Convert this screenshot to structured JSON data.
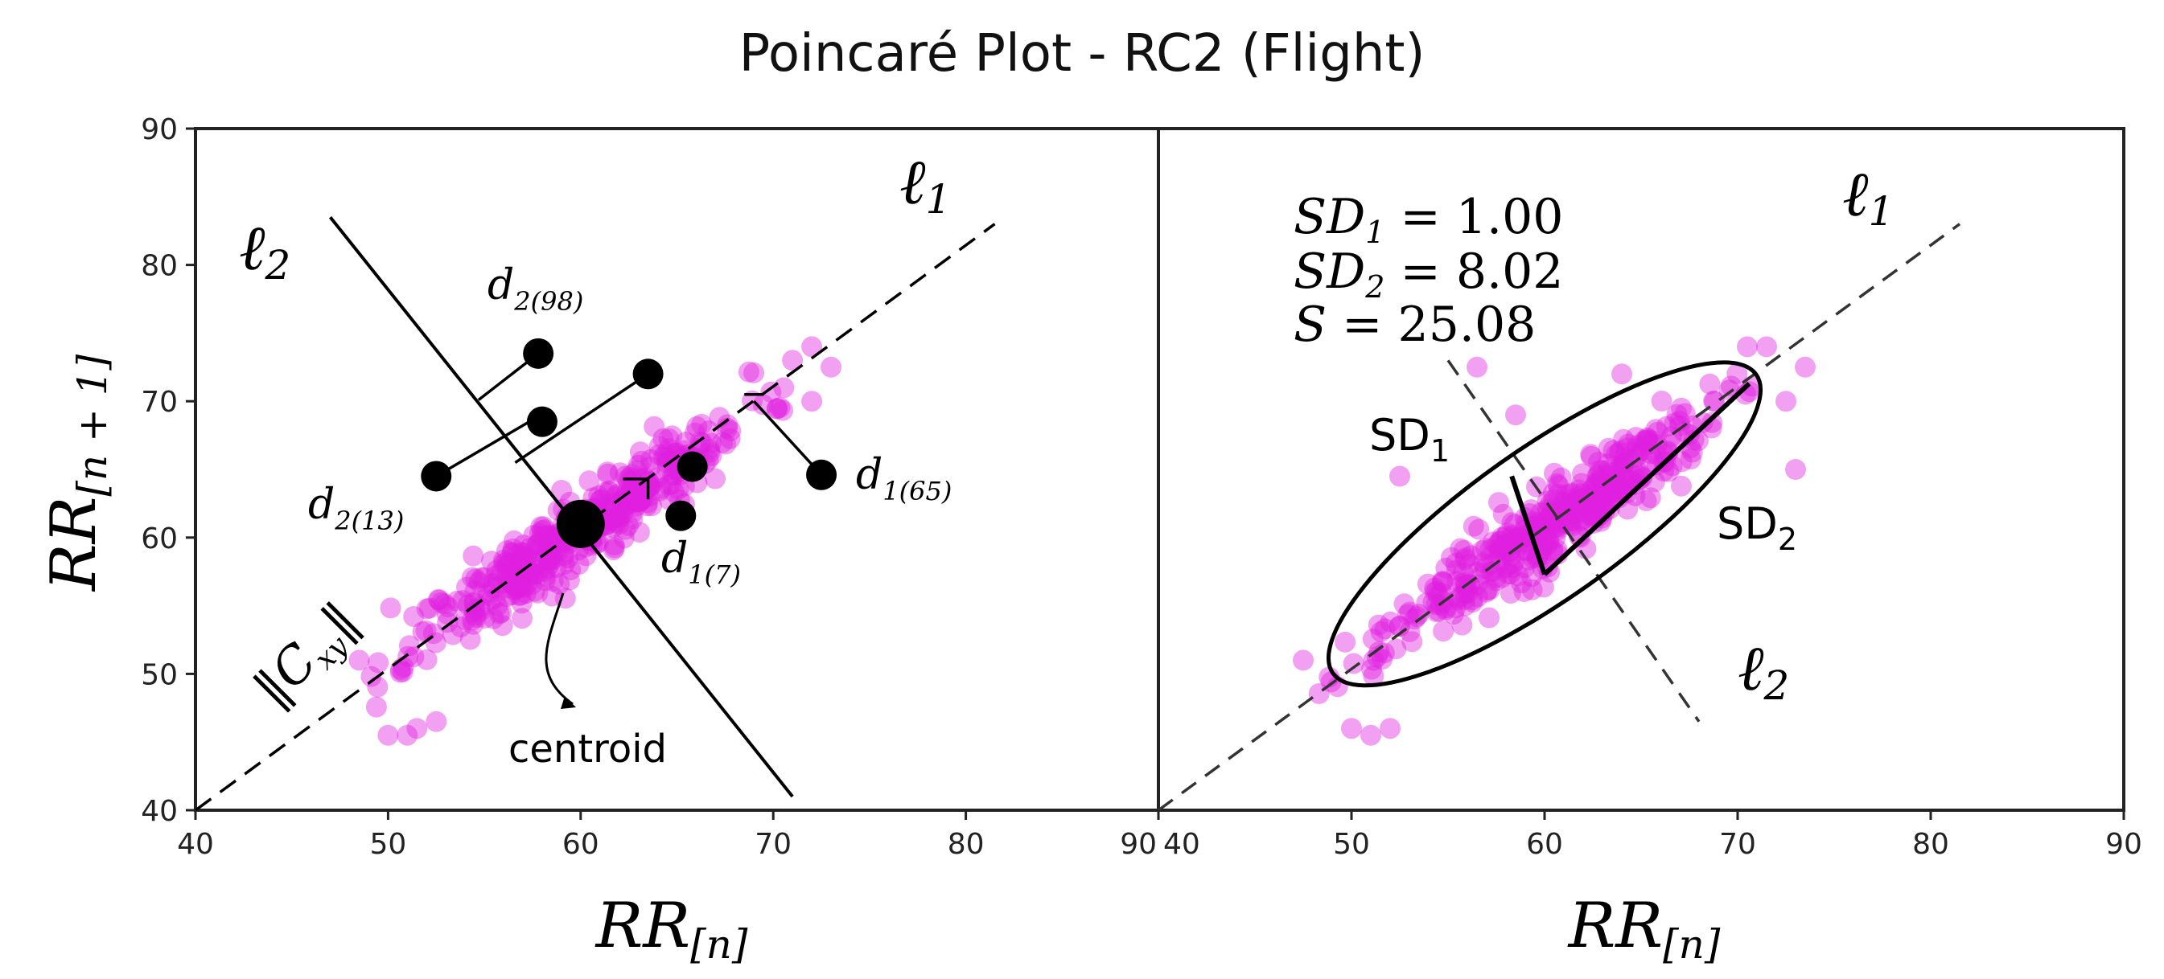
{
  "figure": {
    "title": "Poincaré Plot - RC2 (Flight)"
  },
  "colors": {
    "points": "#e020e0",
    "line": "#000000",
    "axis": "#222222"
  },
  "chart_data": [
    {
      "type": "scatter",
      "panel": "left",
      "title": "Poincaré Plot - RC2 (Flight)",
      "xlabel": "RR[n]",
      "ylabel": "RR[n + 1]",
      "xlim": [
        40,
        90
      ],
      "ylim": [
        40,
        90
      ],
      "x_ticks": [
        40,
        50,
        60,
        70,
        80,
        90
      ],
      "y_ticks": [
        40,
        50,
        60,
        70,
        80,
        90
      ],
      "x_tick_labels": [
        "40",
        "50",
        "60",
        "70",
        "80",
        "90"
      ],
      "y_tick_labels": [
        "40",
        "50",
        "60",
        "70",
        "80",
        "90"
      ],
      "seed": 11,
      "cloud": {
        "count": 420,
        "center": [
          60,
          60
        ],
        "sd_major": 6.2,
        "sd_minor": 1.0,
        "x_range": [
          48,
          71
        ]
      },
      "outliers": [
        [
          50,
          45.5
        ],
        [
          51,
          45.5
        ],
        [
          51.5,
          46
        ],
        [
          52.5,
          46.5
        ],
        [
          65,
          65
        ],
        [
          66,
          65
        ],
        [
          71,
          73
        ],
        [
          72,
          74
        ],
        [
          73,
          72.5
        ],
        [
          72,
          70
        ],
        [
          48.5,
          51
        ]
      ],
      "identity_line": {
        "x": [
          40,
          81.5
        ],
        "y": [
          40,
          83
        ]
      },
      "perpendicular_line": {
        "x": [
          47,
          71
        ],
        "y": [
          83.5,
          41
        ]
      },
      "centroid": {
        "x": 60,
        "y": 61
      },
      "highlighted_points": [
        {
          "name": "d2-98",
          "x": 57.8,
          "y": 73.5
        },
        {
          "name": "d2-13-upper",
          "x": 58,
          "y": 68.5
        },
        {
          "name": "d2-13",
          "x": 52.5,
          "y": 64.5
        },
        {
          "name": "upper-right",
          "x": 63.5,
          "y": 72
        },
        {
          "name": "d1-7-upper",
          "x": 65.8,
          "y": 65.2
        },
        {
          "name": "d1-7",
          "x": 65.2,
          "y": 61.6
        },
        {
          "name": "d1-65",
          "x": 72.5,
          "y": 64.6
        }
      ],
      "distance_segments": [
        [
          [
            57.8,
            73.5
          ],
          [
            54.7,
            70.1
          ]
        ],
        [
          [
            52.5,
            64.5
          ],
          [
            57.7,
            68.8
          ]
        ],
        [
          [
            63.5,
            72
          ],
          [
            56.6,
            65.5
          ]
        ],
        [
          [
            72.5,
            64.6
          ],
          [
            69,
            70
          ]
        ]
      ],
      "right_angle_marks": [
        [
          [
            62.2,
            64.3
          ],
          [
            63.5,
            64.3
          ],
          [
            63.5,
            62.8
          ]
        ],
        [
          [
            68.5,
            70.5
          ],
          [
            69.5,
            70.5
          ]
        ]
      ],
      "annotations": [
        {
          "key": "l1",
          "base": "ℓ",
          "sub": "1"
        },
        {
          "key": "l2",
          "base": "ℓ",
          "sub": "2"
        },
        {
          "key": "d298",
          "base": "d",
          "sub": "2(98)"
        },
        {
          "key": "d213",
          "base": "d",
          "sub": "2(13)"
        },
        {
          "key": "d165",
          "base": "d",
          "sub": "1(65)"
        },
        {
          "key": "d17",
          "base": "d",
          "sub": "1(7)"
        },
        {
          "key": "cxy",
          "base": "‖C",
          "sub": "xy",
          "suffix": "‖"
        },
        {
          "key": "centroid",
          "text": "centroid"
        }
      ]
    },
    {
      "type": "scatter",
      "panel": "right",
      "xlabel": "RR[n]",
      "ylabel": "",
      "xlim": [
        40,
        90
      ],
      "ylim": [
        40,
        90
      ],
      "x_ticks": [
        40,
        50,
        60,
        70,
        80,
        90
      ],
      "y_ticks": [
        40,
        50,
        60,
        70,
        80,
        90
      ],
      "x_tick_labels": [
        "40",
        "50",
        "60",
        "70",
        "80",
        "90"
      ],
      "seed": 23,
      "cloud": {
        "count": 420,
        "center": [
          60,
          60
        ],
        "sd_major": 6.2,
        "sd_minor": 1.0,
        "x_range": [
          48,
          71
        ]
      },
      "outliers": [
        [
          50,
          46
        ],
        [
          51,
          45.5
        ],
        [
          52,
          46
        ],
        [
          52.5,
          64.5
        ],
        [
          56.5,
          72.5
        ],
        [
          58.5,
          69
        ],
        [
          64,
          72
        ],
        [
          70.5,
          74
        ],
        [
          71.5,
          74
        ],
        [
          72.5,
          70
        ],
        [
          73,
          65
        ],
        [
          73.5,
          72.5
        ],
        [
          47.5,
          51
        ]
      ],
      "identity_line": {
        "x": [
          40,
          81.5
        ],
        "y": [
          40,
          83
        ]
      },
      "perpendicular_line": {
        "x": [
          55,
          68
        ],
        "y": [
          73,
          46.5
        ]
      },
      "ellipse": {
        "center": [
          60,
          61
        ],
        "semi_major": 15.5,
        "semi_minor": 4.5,
        "angle_deg": 45
      },
      "sd_axes": [
        [
          [
            60,
            57.3
          ],
          [
            70.6,
            71.3
          ]
        ],
        [
          [
            60,
            57.3
          ],
          [
            58.3,
            64.5
          ]
        ]
      ],
      "stats": {
        "SD1": "1.00",
        "SD2": "8.02",
        "S": "25.08"
      },
      "annotations": [
        {
          "key": "sd1",
          "base": "SD",
          "sub": "1"
        },
        {
          "key": "sd2",
          "base": "SD",
          "sub": "2"
        },
        {
          "key": "l1",
          "base": "ℓ",
          "sub": "1"
        },
        {
          "key": "l2",
          "base": "ℓ",
          "sub": "2"
        }
      ],
      "stat_labels": {
        "sd1": {
          "base": "SD",
          "sub": "1",
          "eq": " = "
        },
        "sd2": {
          "base": "SD",
          "sub": "2",
          "eq": " = "
        },
        "s": {
          "base": "S",
          "eq": " = "
        }
      }
    }
  ]
}
